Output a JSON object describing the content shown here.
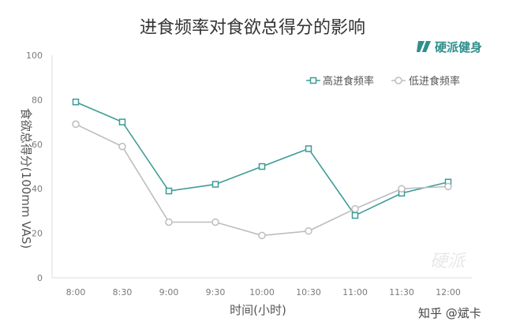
{
  "brand": {
    "name": "硬派健身"
  },
  "footer": {
    "text": "知乎 @斌卡"
  },
  "watermark": {
    "text": "硬派"
  },
  "colors": {
    "high": "#3d9b96",
    "low": "#bdbdbd"
  },
  "chart_data": {
    "type": "line",
    "title": "进食频率对食欲总得分的影响",
    "xlabel": "时间(小时)",
    "ylabel": "食欲总得分(100mm VAS)",
    "categories": [
      "8:00",
      "8:30",
      "9:00",
      "9:30",
      "10:00",
      "10:30",
      "11:00",
      "11:30",
      "12:00"
    ],
    "ylim": [
      0,
      100
    ],
    "yticks": [
      0,
      20,
      40,
      60,
      80,
      100
    ],
    "grid": false,
    "legend_position": "top-right",
    "series": [
      {
        "name": "高进食频率",
        "marker": "square",
        "values": [
          79,
          70,
          39,
          42,
          50,
          58,
          28,
          38,
          43
        ]
      },
      {
        "name": "低进食频率",
        "marker": "circle",
        "values": [
          69,
          59,
          25,
          25,
          19,
          21,
          31,
          40,
          41
        ]
      }
    ]
  }
}
